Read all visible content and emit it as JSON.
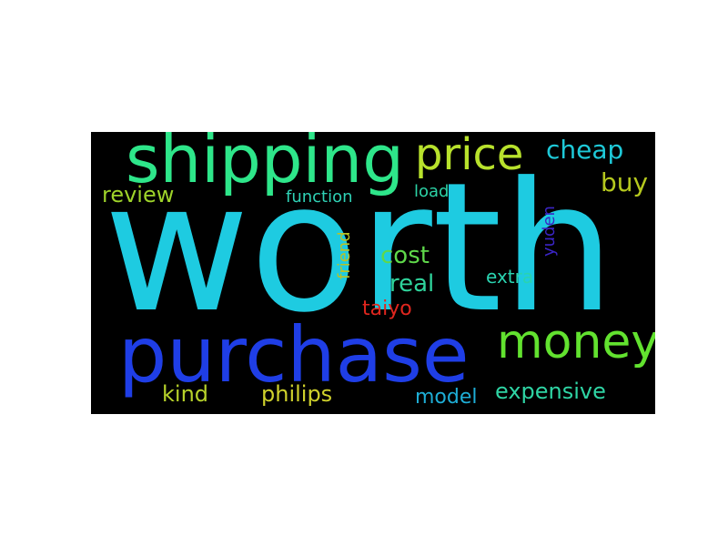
{
  "words": [
    {
      "id": "worth",
      "text": "worth",
      "color": "#1ecbe1",
      "weight": 1.0,
      "orientation": "horizontal"
    },
    {
      "id": "purchase",
      "text": "purchase",
      "color": "#1f3ee6",
      "weight": 0.45,
      "orientation": "horizontal"
    },
    {
      "id": "shipping",
      "text": "shipping",
      "color": "#2ee68a",
      "weight": 0.38,
      "orientation": "horizontal"
    },
    {
      "id": "money",
      "text": "money",
      "color": "#62e22f",
      "weight": 0.3,
      "orientation": "horizontal"
    },
    {
      "id": "price",
      "text": "price",
      "color": "#b8e22c",
      "weight": 0.3,
      "orientation": "horizontal"
    },
    {
      "id": "cheap",
      "text": "cheap",
      "color": "#1ec9d8",
      "weight": 0.18,
      "orientation": "horizontal"
    },
    {
      "id": "buy",
      "text": "buy",
      "color": "#b5c81e",
      "weight": 0.18,
      "orientation": "horizontal"
    },
    {
      "id": "review",
      "text": "review",
      "color": "#9ed32a",
      "weight": 0.16,
      "orientation": "horizontal"
    },
    {
      "id": "function",
      "text": "function",
      "color": "#2fd1b5",
      "weight": 0.12,
      "orientation": "horizontal"
    },
    {
      "id": "load",
      "text": "load",
      "color": "#2cd3a6",
      "weight": 0.12,
      "orientation": "horizontal"
    },
    {
      "id": "cost",
      "text": "cost",
      "color": "#5fd84a",
      "weight": 0.18,
      "orientation": "horizontal"
    },
    {
      "id": "real",
      "text": "real",
      "color": "#2fd39b",
      "weight": 0.18,
      "orientation": "horizontal"
    },
    {
      "id": "friend",
      "text": "friend",
      "color": "#b9c225",
      "weight": 0.12,
      "orientation": "vertical"
    },
    {
      "id": "yuden",
      "text": "yuden",
      "color": "#3b25c6",
      "weight": 0.12,
      "orientation": "vertical"
    },
    {
      "id": "extra",
      "text": "extra",
      "color": "#2ad3b0",
      "weight": 0.12,
      "orientation": "horizontal"
    },
    {
      "id": "taiyo",
      "text": "taiyo",
      "color": "#e0261e",
      "weight": 0.14,
      "orientation": "horizontal"
    },
    {
      "id": "kind",
      "text": "kind",
      "color": "#b6d12a",
      "weight": 0.17,
      "orientation": "horizontal"
    },
    {
      "id": "philips",
      "text": "philips",
      "color": "#cfd12c",
      "weight": 0.17,
      "orientation": "horizontal"
    },
    {
      "id": "model",
      "text": "model",
      "color": "#1eaed6",
      "weight": 0.17,
      "orientation": "horizontal"
    },
    {
      "id": "expensive",
      "text": "expensive",
      "color": "#2fd4a4",
      "weight": 0.18,
      "orientation": "horizontal"
    }
  ]
}
